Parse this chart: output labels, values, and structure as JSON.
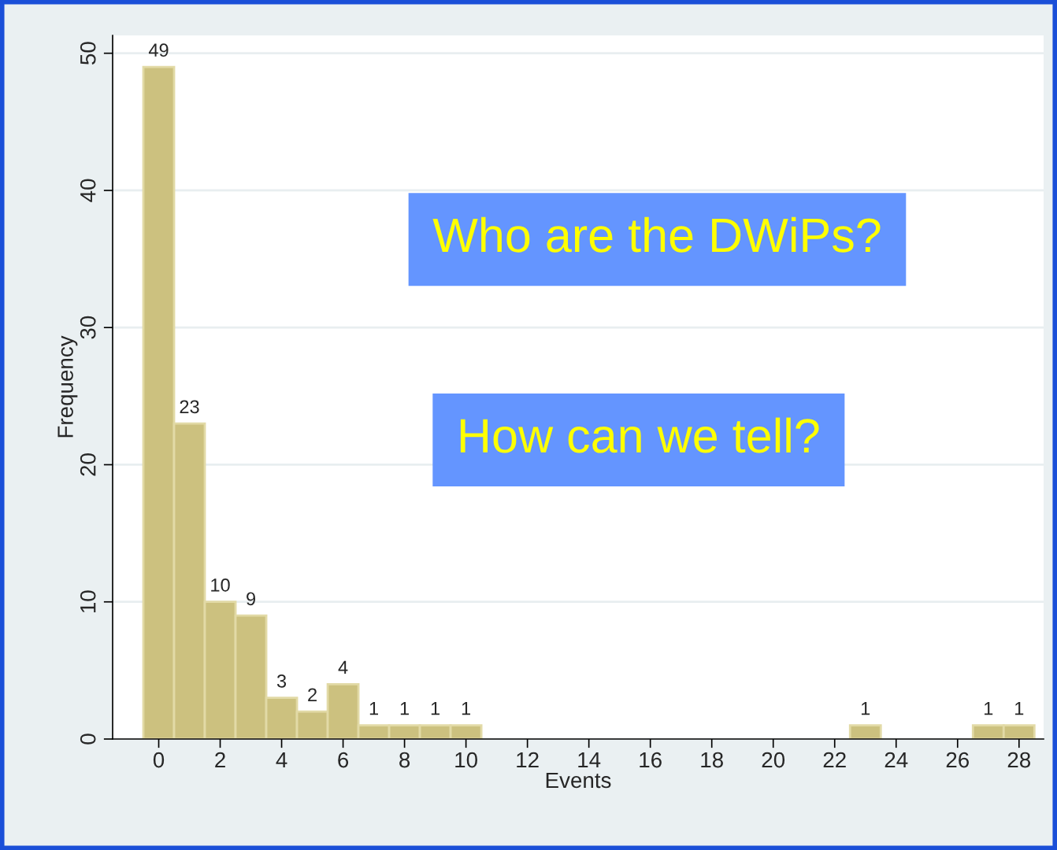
{
  "chart_data": {
    "type": "histogram",
    "xlabel": "Events",
    "ylabel": "Frequency",
    "bins": [
      -0.5,
      0.5,
      1.5,
      2.5,
      3.5,
      4.5,
      5.5,
      6.5,
      7.5,
      8.5,
      9.5,
      10.5,
      11.5,
      12.5,
      13.5,
      14.5,
      15.5,
      16.5,
      17.5,
      18.5,
      19.5,
      20.5,
      21.5,
      22.5,
      23.5,
      24.5,
      25.5,
      26.5,
      27.5,
      28.5
    ],
    "values": [
      49,
      23,
      10,
      9,
      3,
      2,
      4,
      1,
      1,
      1,
      1,
      0,
      0,
      0,
      0,
      0,
      0,
      0,
      0,
      0,
      0,
      0,
      0,
      1,
      0,
      0,
      0,
      1,
      1
    ],
    "value_labels": [
      "49",
      "23",
      "10",
      "9",
      "3",
      "2",
      "4",
      "1",
      "1",
      "1",
      "1",
      null,
      null,
      null,
      null,
      null,
      null,
      null,
      null,
      null,
      null,
      null,
      null,
      "1",
      null,
      null,
      null,
      "1",
      "1"
    ],
    "color": "#ccc17f",
    "xlim": [
      -1.5,
      28.8
    ],
    "ylim": [
      0,
      51.3
    ],
    "xticks": [
      0,
      2,
      4,
      6,
      8,
      10,
      12,
      14,
      16,
      18,
      20,
      22,
      24,
      26,
      28
    ],
    "yticks": [
      0,
      10,
      20,
      30,
      40,
      50
    ],
    "grid": "y",
    "annotations": [
      "Who are the DWiPs?",
      "How can we tell?"
    ]
  }
}
